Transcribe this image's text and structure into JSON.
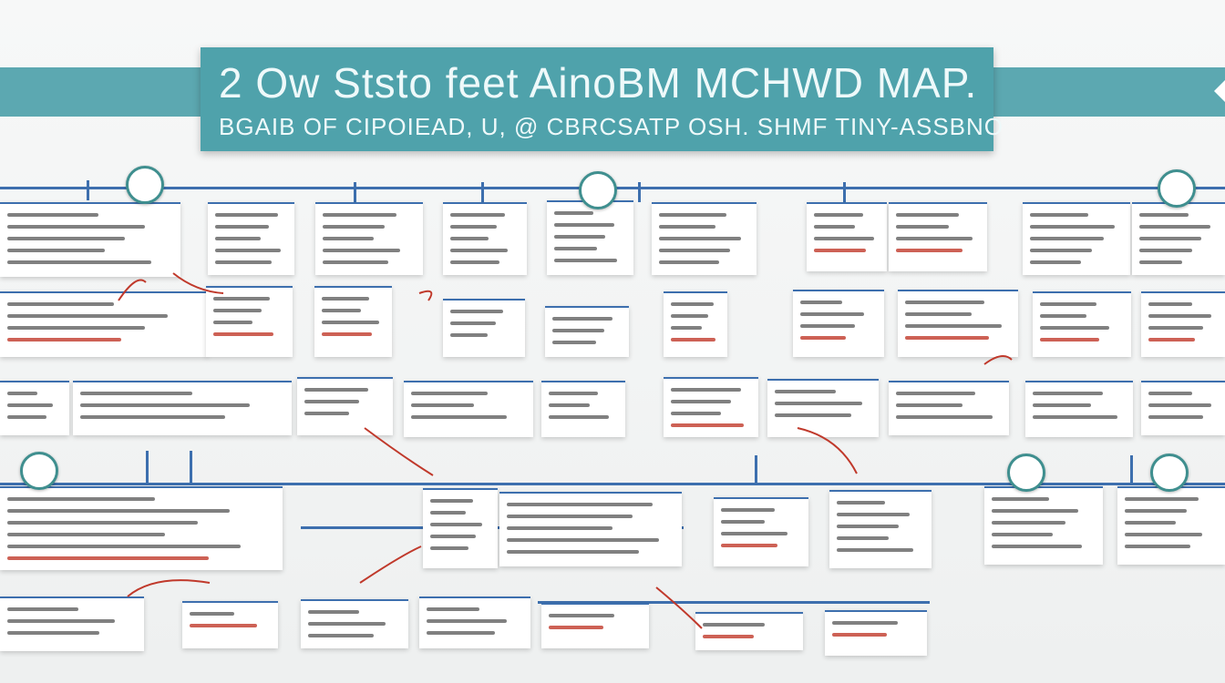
{
  "header": {
    "title": "2 Ow Ststo feet AinoBM MCHWD MAP.",
    "subtitle": "BGAIB OF CIPOIEAD, U, @ CBRCSATP OSH. SHMF TINY-ASSBNO"
  },
  "colors": {
    "banner": "#4fa2ab",
    "connector": "#3d6fae",
    "accent_curve": "#c0392b",
    "card": "#ffffff"
  }
}
